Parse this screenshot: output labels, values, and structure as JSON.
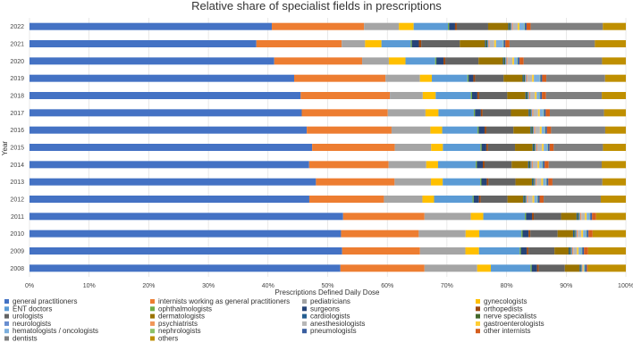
{
  "chart_data": {
    "type": "bar",
    "orientation": "horizontal",
    "stacked": "percent",
    "title": "Relative share of specialist fields in prescriptions",
    "xlabel": "Prescriptions Defined Daily Dose",
    "ylabel": "Year",
    "xlim": [
      0,
      100
    ],
    "x_ticks": [
      "0%",
      "10%",
      "20%",
      "30%",
      "40%",
      "50%",
      "60%",
      "70%",
      "80%",
      "90%",
      "100%"
    ],
    "grid": "vertical",
    "legend_position": "bottom",
    "categories": [
      "2022",
      "2021",
      "2020",
      "2019",
      "2018",
      "2017",
      "2016",
      "2015",
      "2014",
      "2013",
      "2012",
      "2011",
      "2010",
      "2009",
      "2008"
    ],
    "series": [
      {
        "name": "general practitioners",
        "color": "#4472C4",
        "values": [
          41.0,
          38.8,
          41.2,
          44.6,
          46.2,
          46.2,
          47.1,
          48.2,
          47.5,
          48.8,
          48.0,
          52.8,
          52.5,
          53.0,
          52.5
        ]
      },
      {
        "name": "internists working as general practitioners",
        "color": "#ED7D31",
        "values": [
          15.6,
          14.6,
          14.8,
          15.4,
          15.2,
          14.6,
          14.4,
          14.1,
          13.5,
          13.4,
          12.8,
          13.7,
          13.1,
          13.2,
          14.2
        ]
      },
      {
        "name": "pediatricians",
        "color": "#A5A5A5",
        "values": [
          5.9,
          4.0,
          4.5,
          5.8,
          5.6,
          6.4,
          6.6,
          6.2,
          6.4,
          6.2,
          6.6,
          7.8,
          7.9,
          7.7,
          8.9
        ]
      },
      {
        "name": "gynecologists",
        "color": "#FFC000",
        "values": [
          2.5,
          2.8,
          2.8,
          2.0,
          2.2,
          2.2,
          2.0,
          2.0,
          2.0,
          2.0,
          2.0,
          2.1,
          2.3,
          2.3,
          2.3
        ]
      },
      {
        "name": "ENT doctors",
        "color": "#5B9BD5",
        "values": [
          5.8,
          5.0,
          5.0,
          6.0,
          6.0,
          6.0,
          6.0,
          6.4,
          6.4,
          6.4,
          6.6,
          7.0,
          7.1,
          6.9,
          6.7
        ]
      },
      {
        "name": "ophthalmologists",
        "color": "#70AD47",
        "values": [
          0.2,
          0.2,
          0.2,
          0.2,
          0.2,
          0.2,
          0.2,
          0.2,
          0.2,
          0.2,
          0.2,
          0.2,
          0.2,
          0.2,
          0.2
        ]
      },
      {
        "name": "surgeons",
        "color": "#264478",
        "values": [
          1.0,
          1.2,
          1.2,
          0.8,
          0.9,
          1.0,
          1.0,
          0.8,
          1.0,
          0.9,
          0.9,
          1.0,
          1.0,
          1.0,
          0.9
        ]
      },
      {
        "name": "orthopedists",
        "color": "#9E480E",
        "values": [
          0.3,
          0.4,
          0.3,
          0.3,
          0.3,
          0.3,
          0.3,
          0.3,
          0.3,
          0.3,
          0.3,
          0.3,
          0.3,
          0.3,
          0.3
        ]
      },
      {
        "name": "urologists",
        "color": "#636363",
        "values": [
          5.3,
          6.6,
          5.6,
          4.8,
          4.8,
          4.8,
          4.6,
          4.6,
          4.6,
          4.6,
          4.6,
          4.6,
          4.6,
          4.4,
          4.4
        ]
      },
      {
        "name": "dermatologists",
        "color": "#997300",
        "values": [
          3.4,
          4.3,
          4.1,
          3.2,
          3.1,
          3.0,
          2.9,
          3.0,
          2.8,
          2.8,
          2.7,
          2.6,
          2.6,
          2.4,
          2.5
        ]
      },
      {
        "name": "cardiologists",
        "color": "#255E91",
        "values": [
          0.2,
          0.2,
          0.2,
          0.2,
          0.2,
          0.2,
          0.2,
          0.2,
          0.2,
          0.2,
          0.2,
          0.2,
          0.2,
          0.2,
          0.2
        ]
      },
      {
        "name": "nerve specialists",
        "color": "#43682B",
        "values": [
          0.2,
          0.2,
          0.2,
          0.2,
          0.2,
          0.2,
          0.2,
          0.2,
          0.2,
          0.2,
          0.2,
          0.2,
          0.2,
          0.2,
          0.1
        ]
      },
      {
        "name": "neurologists",
        "color": "#698ED0",
        "values": [
          0.2,
          0.2,
          0.2,
          0.2,
          0.2,
          0.2,
          0.2,
          0.2,
          0.2,
          0.2,
          0.2,
          0.2,
          0.2,
          0.2,
          0.1
        ]
      },
      {
        "name": "psychiatrists",
        "color": "#F1975A",
        "values": [
          0.2,
          0.2,
          0.2,
          0.2,
          0.2,
          0.2,
          0.2,
          0.2,
          0.2,
          0.2,
          0.2,
          0.2,
          0.2,
          0.2,
          0.1
        ]
      },
      {
        "name": "anesthesiologists",
        "color": "#B7B7B7",
        "values": [
          0.8,
          0.8,
          0.8,
          0.8,
          0.8,
          0.8,
          0.8,
          0.8,
          0.8,
          0.8,
          0.8,
          0.6,
          0.6,
          0.6,
          0.1
        ]
      },
      {
        "name": "gastroenterologists",
        "color": "#FFCD33",
        "values": [
          0.3,
          0.3,
          0.3,
          0.3,
          0.3,
          0.3,
          0.3,
          0.3,
          0.3,
          0.3,
          0.3,
          0.3,
          0.3,
          0.3,
          0.1
        ]
      },
      {
        "name": "hematologists / oncologists",
        "color": "#7CAFDD",
        "values": [
          0.8,
          1.2,
          0.5,
          1.0,
          0.5,
          0.6,
          0.5,
          0.6,
          0.5,
          0.5,
          0.5,
          0.5,
          0.5,
          0.5,
          0.1
        ]
      },
      {
        "name": "nephrologists",
        "color": "#8CC168",
        "values": [
          0.1,
          0.1,
          0.1,
          0.1,
          0.1,
          0.1,
          0.1,
          0.1,
          0.1,
          0.1,
          0.1,
          0.1,
          0.1,
          0.1,
          0.1
        ]
      },
      {
        "name": "pneumologists",
        "color": "#3A5FA0",
        "values": [
          0.3,
          0.3,
          0.3,
          0.3,
          0.3,
          0.3,
          0.3,
          0.3,
          0.3,
          0.3,
          0.3,
          0.3,
          0.3,
          0.3,
          0.3
        ]
      },
      {
        "name": "other internists",
        "color": "#D55E1E",
        "values": [
          0.7,
          0.7,
          0.7,
          0.7,
          0.7,
          0.7,
          0.7,
          0.7,
          0.7,
          0.7,
          0.7,
          0.7,
          0.7,
          0.7,
          0.2
        ]
      },
      {
        "name": "dentists",
        "color": "#7F7F7F",
        "values": [
          12.2,
          14.6,
          13.2,
          9.9,
          9.5,
          9.2,
          9.2,
          8.4,
          9.0,
          8.5,
          9.8,
          0.0,
          0.0,
          0.0,
          0.0
        ]
      },
      {
        "name": "others",
        "color": "#BF8F00",
        "values": [
          3.9,
          5.3,
          4.0,
          3.5,
          4.1,
          3.7,
          3.5,
          3.9,
          4.1,
          4.0,
          4.3,
          5.0,
          5.6,
          6.4,
          6.4
        ]
      }
    ]
  }
}
